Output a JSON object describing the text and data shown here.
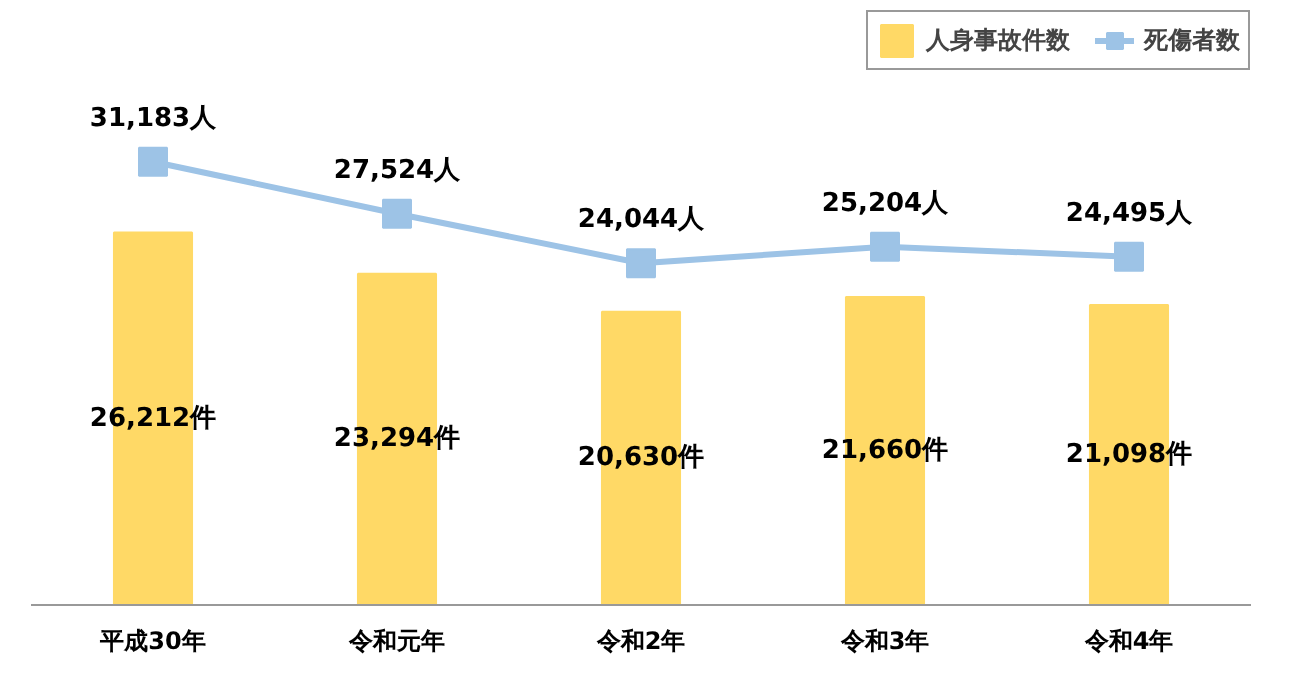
{
  "chart_data": {
    "type": "bar",
    "categories": [
      "平成30年",
      "令和元年",
      "令和2年",
      "令和3年",
      "令和4年"
    ],
    "series": [
      {
        "name": "人身事故件数",
        "color": "#ffd966",
        "values": [
          26212,
          23294,
          20630,
          21660,
          21098
        ],
        "value_labels": [
          "26,212件",
          "23,294件",
          "20,630件",
          "21,660件",
          "21,098件"
        ]
      },
      {
        "name": "死傷者数",
        "type": "line",
        "color": "#9dc3e6",
        "marker": "square",
        "values": [
          31183,
          27524,
          24044,
          25204,
          24495
        ],
        "value_labels": [
          "31,183人",
          "27,524人",
          "24,044人",
          "25,204人",
          "24,495人"
        ]
      }
    ],
    "tick_labels": "x",
    "legend": "top right"
  }
}
